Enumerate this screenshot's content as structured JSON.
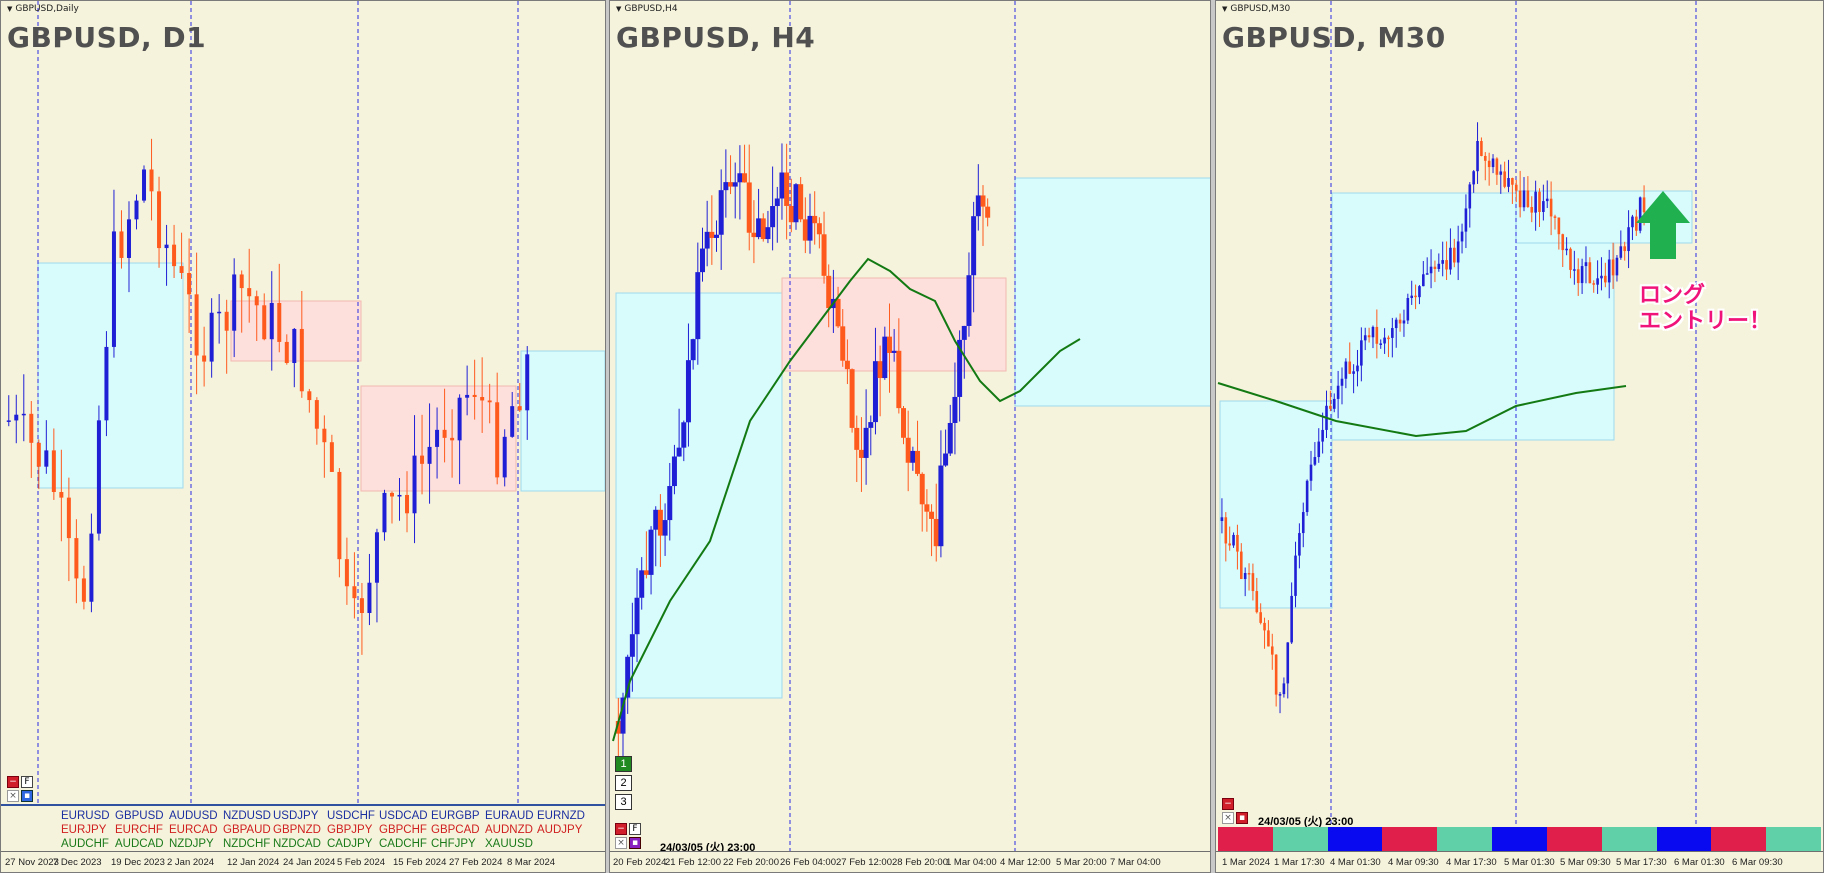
{
  "colors": {
    "up": "#1f1fd6",
    "down": "#ff5a1e",
    "bg": "#f5f3dc",
    "box_blue": "#d8fbfb",
    "box_red": "#fde0dc",
    "ma": "#137a13",
    "arrow": "#20b050",
    "annot": "#f0147a"
  },
  "panels": [
    {
      "id": "p1",
      "title": "GBPUSD,Daily",
      "label": "GBPUSD, D1",
      "x_ticks": [
        "27 Nov 2023",
        "7 Dec 2023",
        "19 Dec 2023",
        "2 Jan 2024",
        "12 Jan 2024",
        "24 Jan 2024",
        "5 Feb 2024",
        "15 Feb 2024",
        "27 Feb 2024",
        "8 Mar 2024"
      ],
      "buttons": {
        "minimize": "−",
        "f": "F",
        "close": "×",
        "square": "▪"
      }
    },
    {
      "id": "p2",
      "title": "GBPUSD,H4",
      "label": "GBPUSD, H4",
      "x_ticks": [
        "20 Feb 2024",
        "21 Feb 12:00",
        "22 Feb 20:00",
        "26 Feb 04:00",
        "27 Feb 12:00",
        "28 Feb 20:00",
        "1 Mar 04:00",
        "4 Mar 12:00",
        "5 Mar 20:00",
        "7 Mar 04:00"
      ],
      "timeframe_buttons": [
        "1",
        "2",
        "3"
      ],
      "stamp": "24/03/05 (火) 23:00",
      "buttons": {
        "minimize": "−",
        "f": "F",
        "close": "×",
        "square": "▪"
      }
    },
    {
      "id": "p3",
      "title": "GBPUSD,M30",
      "label": "GBPUSD, M30",
      "x_ticks": [
        "1 Mar 2024",
        "1 Mar 17:30",
        "4 Mar 01:30",
        "4 Mar 09:30",
        "4 Mar 17:30",
        "5 Mar 01:30",
        "5 Mar 09:30",
        "5 Mar 17:30",
        "6 Mar 01:30",
        "6 Mar 09:30"
      ],
      "stamp": "24/03/05 (火) 23:00",
      "annotation_line1": "ロング",
      "annotation_line2": "エントリー！",
      "arrow_icon": "up-arrow-icon",
      "strip_colors": [
        "#e0204a",
        "#60d0a8",
        "#0a0af0",
        "#e0204a",
        "#60d0a8",
        "#0a0af0",
        "#e0204a",
        "#60d0a8",
        "#0a0af0",
        "#e0204a",
        "#60d0a8"
      ],
      "buttons": {
        "minimize": "−",
        "close": "×",
        "square": "▪"
      }
    }
  ],
  "currency_rows": [
    [
      {
        "t": "EURUSD",
        "c": "#1c2fa0"
      },
      {
        "t": "GBPUSD",
        "c": "#1c2fa0"
      },
      {
        "t": "AUDUSD",
        "c": "#1c2fa0"
      },
      {
        "t": "NZDUSD",
        "c": "#1c2fa0"
      },
      {
        "t": "USDJPY",
        "c": "#1c2fa0"
      },
      {
        "t": "USDCHF",
        "c": "#1c2fa0"
      },
      {
        "t": "USDCAD",
        "c": "#1c2fa0"
      },
      {
        "t": "EURGBP",
        "c": "#1c2fa0"
      },
      {
        "t": "EURAUD",
        "c": "#1c2fa0"
      },
      {
        "t": "EURNZD",
        "c": "#1c2fa0"
      }
    ],
    [
      {
        "t": "EURJPY",
        "c": "#d02020"
      },
      {
        "t": "EURCHF",
        "c": "#d02020"
      },
      {
        "t": "EURCAD",
        "c": "#d02020"
      },
      {
        "t": "GBPAUD",
        "c": "#d02020"
      },
      {
        "t": "GBPNZD",
        "c": "#d02020"
      },
      {
        "t": "GBPJPY",
        "c": "#d02020"
      },
      {
        "t": "GBPCHF",
        "c": "#d02020"
      },
      {
        "t": "GBPCAD",
        "c": "#d02020"
      },
      {
        "t": "AUDNZD",
        "c": "#d02020"
      },
      {
        "t": "AUDJPY",
        "c": "#d02020"
      }
    ],
    [
      {
        "t": "AUDCHF",
        "c": "#1a7a1a"
      },
      {
        "t": "AUDCAD",
        "c": "#1a7a1a"
      },
      {
        "t": "NZDJPY",
        "c": "#1a7a1a"
      },
      {
        "t": "NZDCHF",
        "c": "#1a7a1a"
      },
      {
        "t": "NZDCAD",
        "c": "#1a7a1a"
      },
      {
        "t": "CADJPY",
        "c": "#1a7a1a"
      },
      {
        "t": "CADCHF",
        "c": "#1a7a1a"
      },
      {
        "t": "CHFJPY",
        "c": "#1a7a1a"
      },
      {
        "t": "XAUUSD",
        "c": "#1a7a1a"
      }
    ]
  ]
}
